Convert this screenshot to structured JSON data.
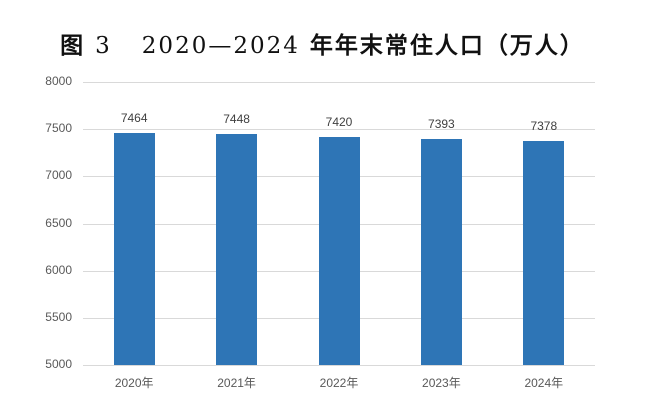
{
  "title": {
    "prefix": "图",
    "fig_no": "3",
    "years": "2020—2024",
    "suffix": "年年末常住人口（万人）"
  },
  "chart_data": {
    "type": "bar",
    "title": "图 3  2020—2024 年年末常住人口（万人）",
    "categories": [
      "2020年",
      "2021年",
      "2022年",
      "2023年",
      "2024年"
    ],
    "values": [
      7464,
      7448,
      7420,
      7393,
      7378
    ],
    "series": [
      {
        "name": "年末常住人口（万人）",
        "values": [
          7464,
          7448,
          7420,
          7393,
          7378
        ]
      }
    ],
    "xlabel": "",
    "ylabel": "",
    "ylim": [
      5000,
      8000
    ],
    "yticks": [
      5000,
      5500,
      6000,
      6500,
      7000,
      7500,
      8000
    ],
    "grid": true,
    "legend": "none",
    "data_labels": true,
    "bar_color": "#2e75b6"
  }
}
